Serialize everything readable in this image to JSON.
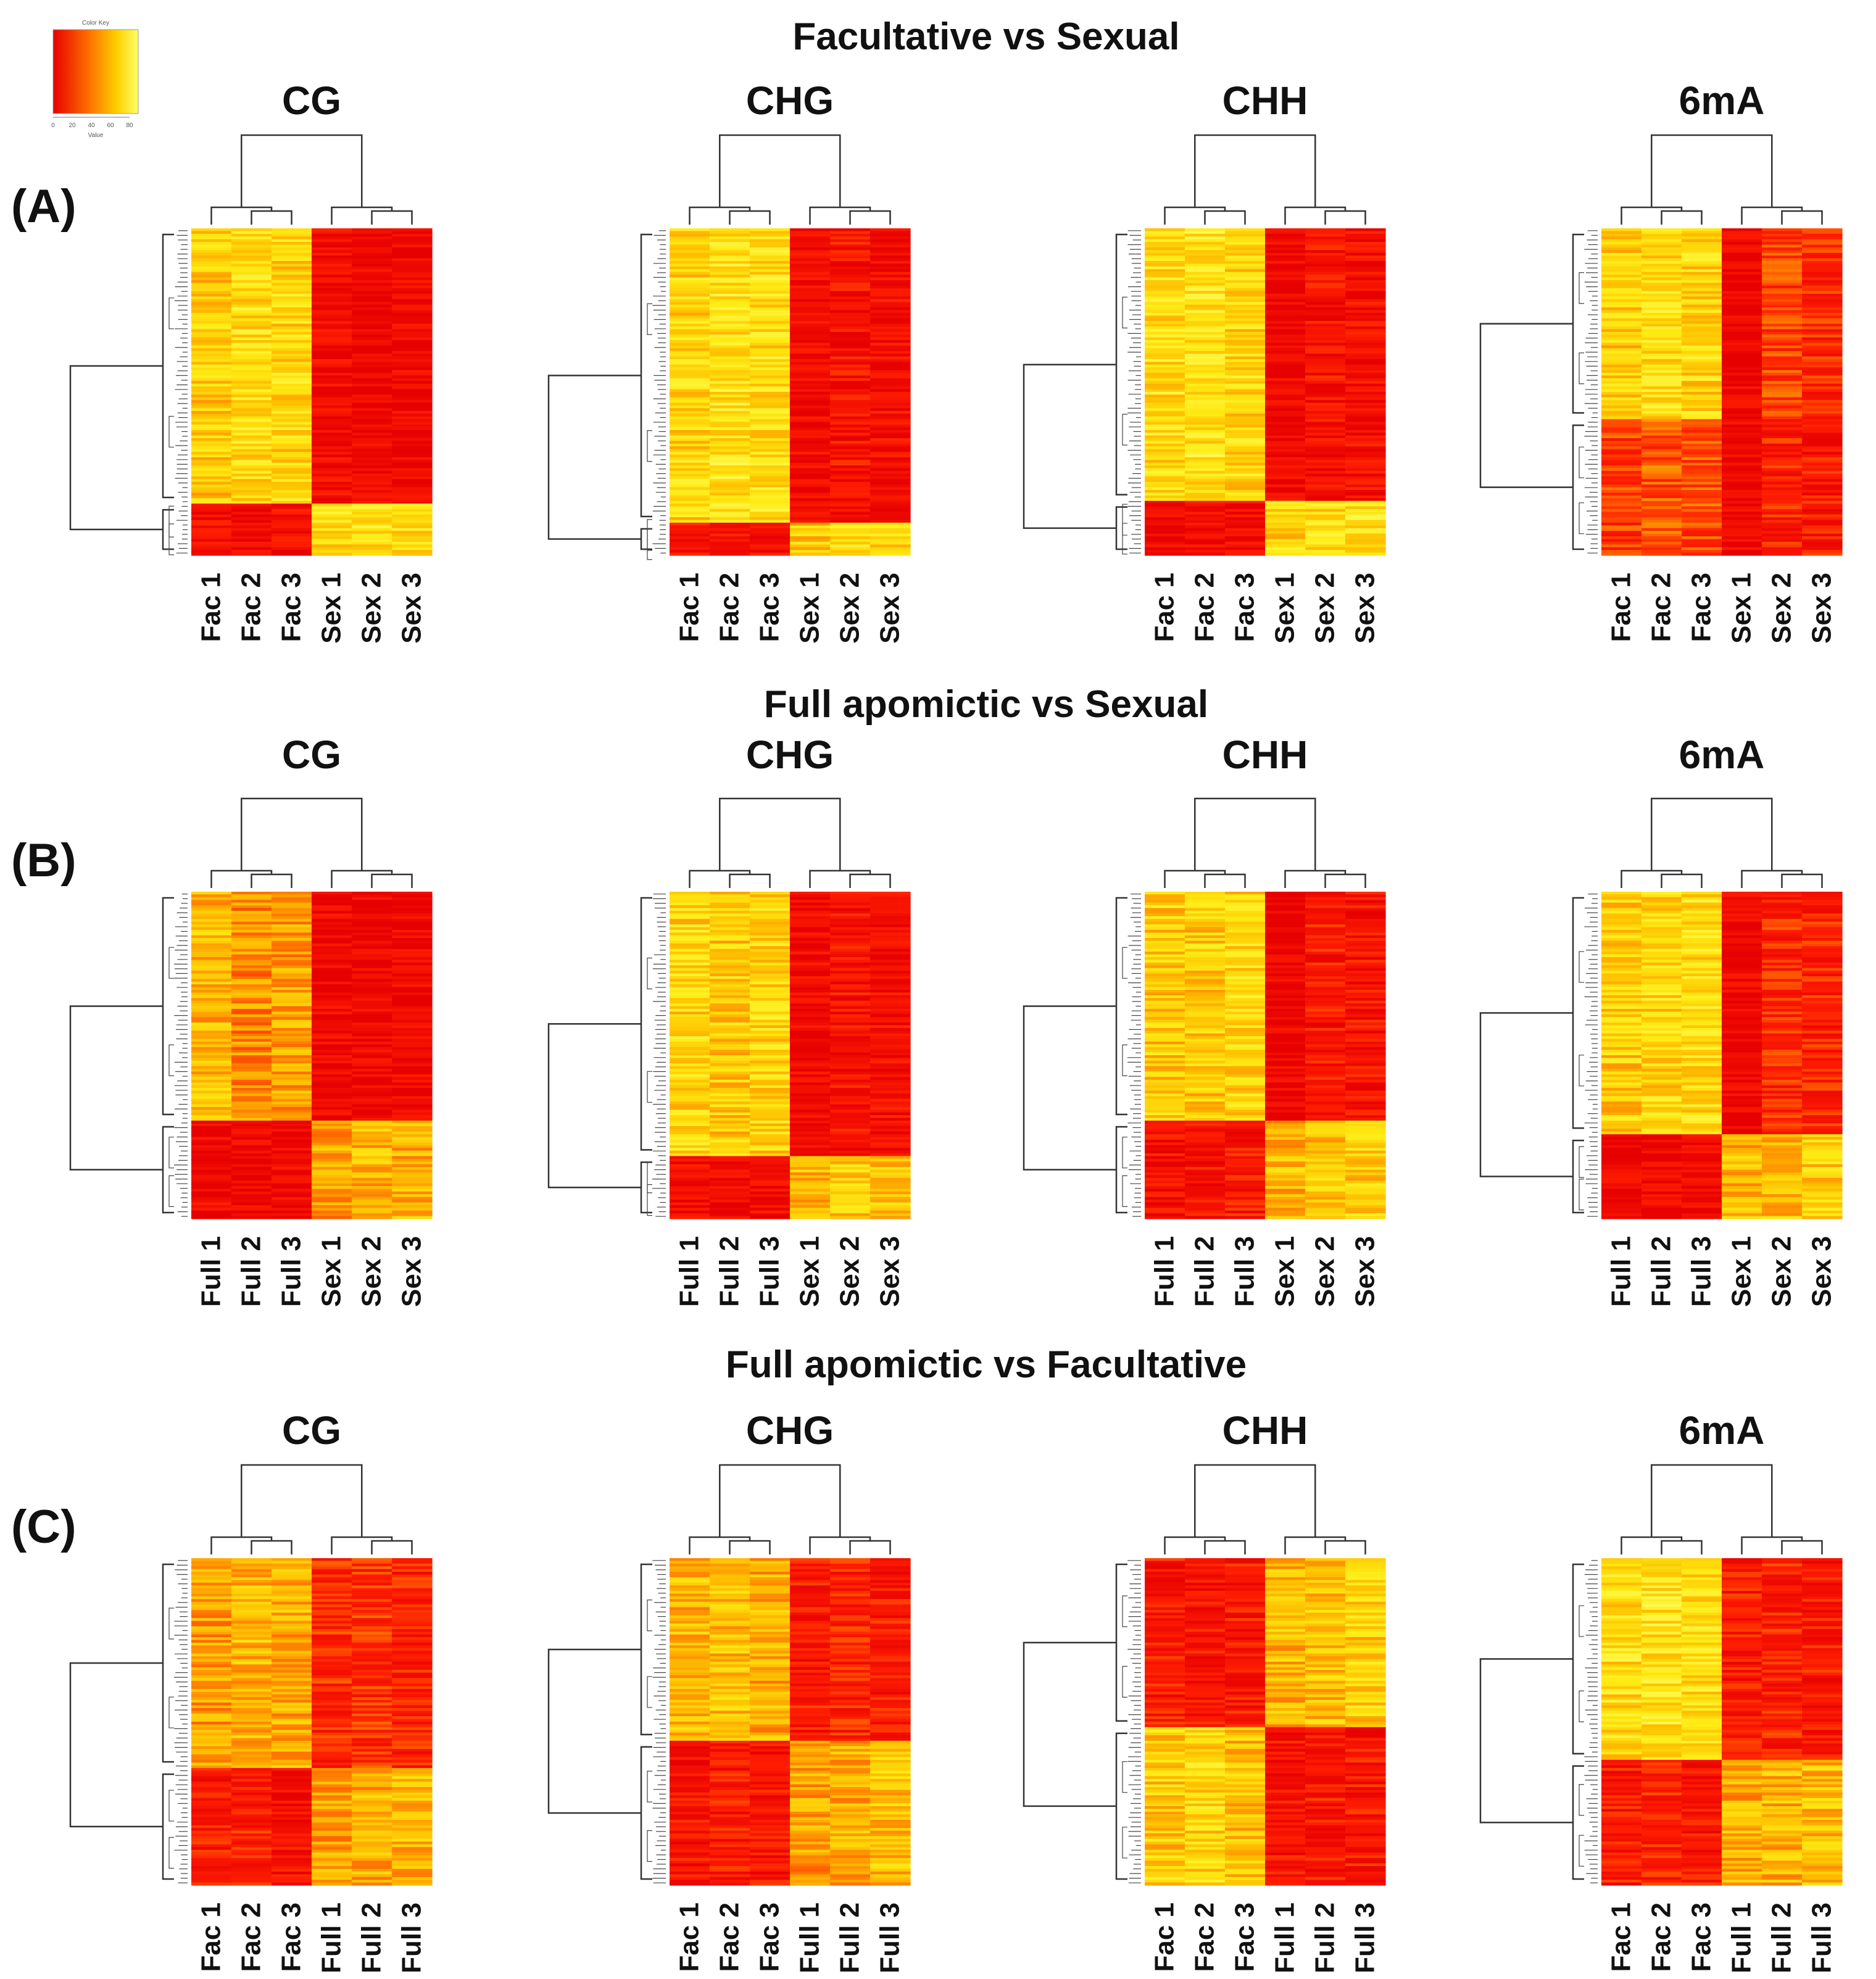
{
  "color_key": {
    "title": "Color Key",
    "ticks": [
      "0",
      "20",
      "40",
      "60",
      "80"
    ],
    "xlabel": "Value",
    "gradient": [
      "#e60000",
      "#ff6a00",
      "#ffd000",
      "#ffff66"
    ]
  },
  "rows": [
    {
      "letter": "(A)",
      "title": "Facultative vs Sexual",
      "panels": [
        {
          "title": "CG",
          "columns": [
            "Fac 1",
            "Fac 2",
            "Fac 3",
            "Sex 1",
            "Sex 2",
            "Sex 3"
          ]
        },
        {
          "title": "CHG",
          "columns": [
            "Fac 1",
            "Fac 2",
            "Fac 3",
            "Sex 1",
            "Sex 2",
            "Sex 3"
          ]
        },
        {
          "title": "CHH",
          "columns": [
            "Fac 1",
            "Fac 2",
            "Fac 3",
            "Sex 1",
            "Sex 2",
            "Sex 3"
          ]
        },
        {
          "title": "6mA",
          "columns": [
            "Fac 1",
            "Fac 2",
            "Fac 3",
            "Sex 1",
            "Sex 2",
            "Sex 3"
          ]
        }
      ]
    },
    {
      "letter": "(B)",
      "title": "Full apomictic vs Sexual",
      "panels": [
        {
          "title": "CG",
          "columns": [
            "Full 1",
            "Full 2",
            "Full 3",
            "Sex 1",
            "Sex 2",
            "Sex 3"
          ]
        },
        {
          "title": "CHG",
          "columns": [
            "Full 1",
            "Full 2",
            "Full 3",
            "Sex 1",
            "Sex 2",
            "Sex 3"
          ]
        },
        {
          "title": "CHH",
          "columns": [
            "Full 1",
            "Full 2",
            "Full 3",
            "Sex 1",
            "Sex 2",
            "Sex 3"
          ]
        },
        {
          "title": "6mA",
          "columns": [
            "Full 1",
            "Full 2",
            "Full 3",
            "Sex 1",
            "Sex 2",
            "Sex 3"
          ]
        }
      ]
    },
    {
      "letter": "(C)",
      "title": "Full apomictic vs Facultative",
      "panels": [
        {
          "title": "CG",
          "columns": [
            "Fac 1",
            "Fac 2",
            "Fac 3",
            "Full 1",
            "Full 2",
            "Full 3"
          ]
        },
        {
          "title": "CHG",
          "columns": [
            "Fac 1",
            "Fac 2",
            "Fac 3",
            "Full 1",
            "Full 2",
            "Full 3"
          ]
        },
        {
          "title": "CHH",
          "columns": [
            "Fac 1",
            "Fac 2",
            "Fac 3",
            "Full 1",
            "Full 2",
            "Full 3"
          ]
        },
        {
          "title": "6mA",
          "columns": [
            "Fac 1",
            "Fac 2",
            "Fac 3",
            "Full 1",
            "Full 2",
            "Full 3"
          ]
        }
      ]
    }
  ],
  "chart_data": [
    {
      "type": "heatmap",
      "title": "CG",
      "group": "Facultative vs Sexual",
      "columns": [
        "Fac 1",
        "Fac 2",
        "Fac 3",
        "Sex 1",
        "Sex 2",
        "Sex 3"
      ],
      "row_clusters": [
        {
          "fraction": 0.84,
          "values": [
            55,
            60,
            58,
            8,
            5,
            6
          ]
        },
        {
          "fraction": 0.16,
          "values": [
            10,
            8,
            9,
            60,
            62,
            58
          ]
        }
      ]
    },
    {
      "type": "heatmap",
      "title": "CHG",
      "group": "Facultative vs Sexual",
      "columns": [
        "Fac 1",
        "Fac 2",
        "Fac 3",
        "Sex 1",
        "Sex 2",
        "Sex 3"
      ],
      "row_clusters": [
        {
          "fraction": 0.9,
          "values": [
            58,
            62,
            60,
            8,
            12,
            10
          ]
        },
        {
          "fraction": 0.1,
          "values": [
            10,
            12,
            10,
            55,
            58,
            60
          ]
        }
      ]
    },
    {
      "type": "heatmap",
      "title": "CHH",
      "group": "Facultative vs Sexual",
      "columns": [
        "Fac 1",
        "Fac 2",
        "Fac 3",
        "Sex 1",
        "Sex 2",
        "Sex 3"
      ],
      "row_clusters": [
        {
          "fraction": 0.83,
          "values": [
            60,
            62,
            58,
            5,
            12,
            10
          ]
        },
        {
          "fraction": 0.17,
          "values": [
            6,
            8,
            8,
            58,
            60,
            62
          ]
        }
      ]
    },
    {
      "type": "heatmap",
      "title": "6mA",
      "group": "Facultative vs Sexual",
      "columns": [
        "Fac 1",
        "Fac 2",
        "Fac 3",
        "Sex 1",
        "Sex 2",
        "Sex 3"
      ],
      "row_clusters": [
        {
          "fraction": 0.58,
          "values": [
            55,
            60,
            58,
            4,
            25,
            20
          ]
        },
        {
          "fraction": 0.42,
          "values": [
            25,
            30,
            28,
            5,
            18,
            15
          ]
        }
      ]
    },
    {
      "type": "heatmap",
      "title": "CG",
      "group": "Full apomictic vs Sexual",
      "columns": [
        "Full 1",
        "Full 2",
        "Full 3",
        "Sex 1",
        "Sex 2",
        "Sex 3"
      ],
      "row_clusters": [
        {
          "fraction": 0.7,
          "values": [
            50,
            40,
            45,
            6,
            5,
            6
          ]
        },
        {
          "fraction": 0.3,
          "values": [
            8,
            5,
            8,
            45,
            50,
            48
          ]
        }
      ]
    },
    {
      "type": "heatmap",
      "title": "CHG",
      "group": "Full apomictic vs Sexual",
      "columns": [
        "Full 1",
        "Full 2",
        "Full 3",
        "Sex 1",
        "Sex 2",
        "Sex 3"
      ],
      "row_clusters": [
        {
          "fraction": 0.81,
          "values": [
            58,
            55,
            58,
            8,
            12,
            10
          ]
        },
        {
          "fraction": 0.19,
          "values": [
            8,
            6,
            8,
            50,
            55,
            55
          ]
        }
      ]
    },
    {
      "type": "heatmap",
      "title": "CHH",
      "group": "Full apomictic vs Sexual",
      "columns": [
        "Full 1",
        "Full 2",
        "Full 3",
        "Sex 1",
        "Sex 2",
        "Sex 3"
      ],
      "row_clusters": [
        {
          "fraction": 0.7,
          "values": [
            55,
            55,
            58,
            4,
            15,
            12
          ]
        },
        {
          "fraction": 0.3,
          "values": [
            10,
            12,
            15,
            50,
            52,
            55
          ]
        }
      ]
    },
    {
      "type": "heatmap",
      "title": "6mA",
      "group": "Full apomictic vs Sexual",
      "columns": [
        "Full 1",
        "Full 2",
        "Full 3",
        "Sex 1",
        "Sex 2",
        "Sex 3"
      ],
      "row_clusters": [
        {
          "fraction": 0.74,
          "values": [
            55,
            58,
            60,
            5,
            20,
            18
          ]
        },
        {
          "fraction": 0.26,
          "values": [
            6,
            5,
            6,
            50,
            52,
            55
          ]
        }
      ]
    },
    {
      "type": "heatmap",
      "title": "CG",
      "group": "Full apomictic vs Facultative",
      "columns": [
        "Fac 1",
        "Fac 2",
        "Fac 3",
        "Full 1",
        "Full 2",
        "Full 3"
      ],
      "row_clusters": [
        {
          "fraction": 0.64,
          "values": [
            45,
            50,
            48,
            20,
            22,
            18
          ]
        },
        {
          "fraction": 0.36,
          "values": [
            15,
            18,
            12,
            45,
            48,
            50
          ]
        }
      ]
    },
    {
      "type": "heatmap",
      "title": "CHG",
      "group": "Full apomictic vs Facultative",
      "columns": [
        "Fac 1",
        "Fac 2",
        "Fac 3",
        "Full 1",
        "Full 2",
        "Full 3"
      ],
      "row_clusters": [
        {
          "fraction": 0.56,
          "values": [
            50,
            52,
            48,
            15,
            18,
            15
          ]
        },
        {
          "fraction": 0.44,
          "values": [
            12,
            15,
            12,
            45,
            48,
            52
          ]
        }
      ]
    },
    {
      "type": "heatmap",
      "title": "CHH",
      "group": "Full apomictic vs Facultative",
      "columns": [
        "Fac 1",
        "Fac 2",
        "Fac 3",
        "Full 1",
        "Full 2",
        "Full 3"
      ],
      "row_clusters": [
        {
          "fraction": 0.52,
          "values": [
            15,
            12,
            15,
            50,
            52,
            55
          ]
        },
        {
          "fraction": 0.48,
          "values": [
            55,
            58,
            52,
            12,
            15,
            15
          ]
        }
      ]
    },
    {
      "type": "heatmap",
      "title": "6mA",
      "group": "Full apomictic vs Facultative",
      "columns": [
        "Fac 1",
        "Fac 2",
        "Fac 3",
        "Full 1",
        "Full 2",
        "Full 3"
      ],
      "row_clusters": [
        {
          "fraction": 0.62,
          "values": [
            60,
            62,
            60,
            15,
            18,
            15
          ]
        },
        {
          "fraction": 0.38,
          "values": [
            15,
            18,
            15,
            48,
            50,
            52
          ]
        }
      ]
    }
  ]
}
